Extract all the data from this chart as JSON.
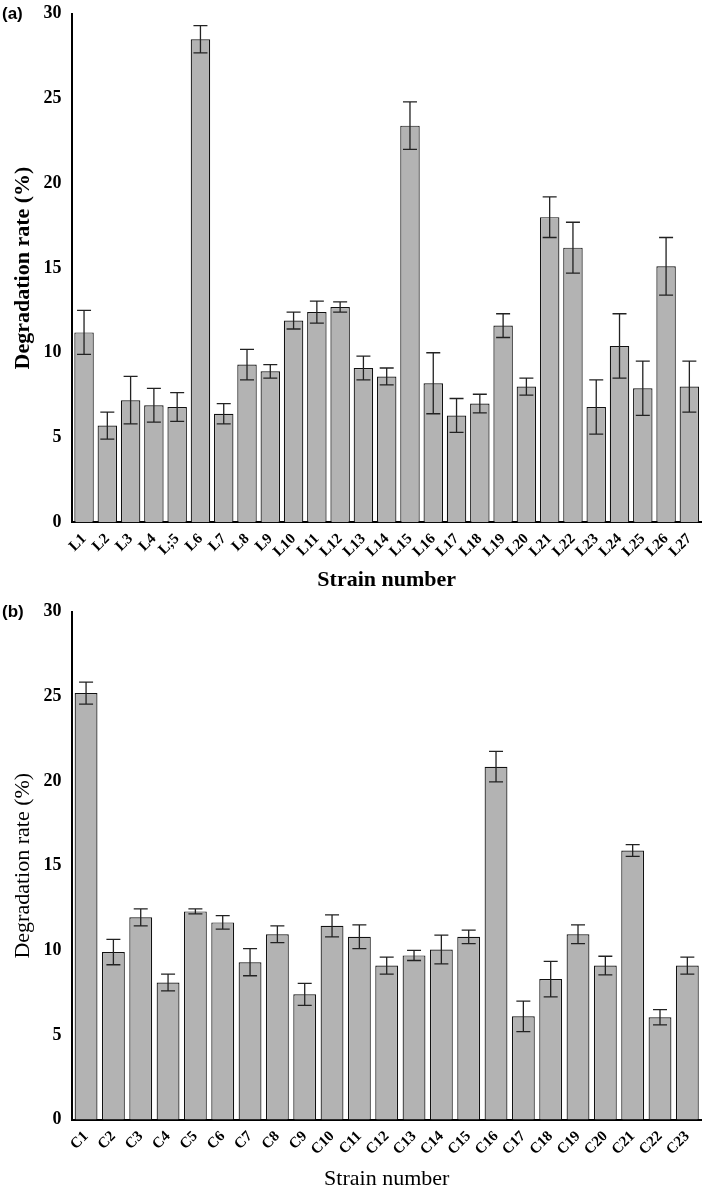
{
  "chart_data": [
    {
      "type": "bar",
      "title": "(a)",
      "xlabel": "Strain number",
      "ylabel": "Degradation rate (%)",
      "categories": [
        "L1",
        "L2",
        "L3",
        "L4",
        "L;5",
        "L6",
        "L7",
        "L8",
        "L9",
        "L10",
        "L11",
        "L12",
        "L13",
        "L14",
        "L15",
        "L16",
        "L17",
        "L18",
        "L19",
        "L20",
        "L21",
        "L22",
        "L23",
        "L24",
        "L25",
        "L26",
        "L27"
      ],
      "values": [
        11.2,
        5.7,
        7.2,
        6.9,
        6.8,
        28.5,
        6.4,
        9.3,
        8.9,
        11.9,
        12.4,
        12.7,
        9.1,
        8.6,
        23.4,
        8.2,
        6.3,
        7.0,
        11.6,
        8.0,
        18.0,
        16.2,
        6.8,
        10.4,
        7.9,
        15.1,
        8.0
      ],
      "errors": [
        1.3,
        0.8,
        1.4,
        1.0,
        0.85,
        0.8,
        0.6,
        0.9,
        0.4,
        0.5,
        0.65,
        0.3,
        0.7,
        0.5,
        1.4,
        1.8,
        1.0,
        0.55,
        0.7,
        0.5,
        1.2,
        1.5,
        1.6,
        1.9,
        1.6,
        1.7,
        1.5
      ],
      "color": "#b3b3b3",
      "ylim": [
        0,
        30
      ],
      "yticks": [
        0,
        5,
        10,
        15,
        20,
        25,
        30
      ]
    },
    {
      "type": "bar",
      "title": "(b)",
      "xlabel": "Strain number",
      "ylabel": "Degradation rate (%)",
      "categories": [
        "C1",
        "C2",
        "C3",
        "C4",
        "C5",
        "C6",
        "C7",
        "C8",
        "C9",
        "C10",
        "C11",
        "C12",
        "C13",
        "C14",
        "C15",
        "C16",
        "C17",
        "C18",
        "C19",
        "C20",
        "C21",
        "C22",
        "C23"
      ],
      "values": [
        25.2,
        9.9,
        11.95,
        8.1,
        12.3,
        11.65,
        9.3,
        10.95,
        7.4,
        11.45,
        10.8,
        9.1,
        9.7,
        10.05,
        10.8,
        20.85,
        6.1,
        8.3,
        10.95,
        9.1,
        15.9,
        6.05,
        9.1
      ],
      "errors": [
        0.65,
        0.75,
        0.5,
        0.5,
        0.15,
        0.4,
        0.8,
        0.5,
        0.65,
        0.65,
        0.7,
        0.5,
        0.3,
        0.85,
        0.4,
        0.9,
        0.9,
        1.05,
        0.55,
        0.55,
        0.35,
        0.45,
        0.5
      ],
      "color": "#b3b3b3",
      "ylim": [
        0,
        30
      ],
      "yticks": [
        0,
        5,
        10,
        15,
        20,
        25,
        30
      ]
    }
  ]
}
